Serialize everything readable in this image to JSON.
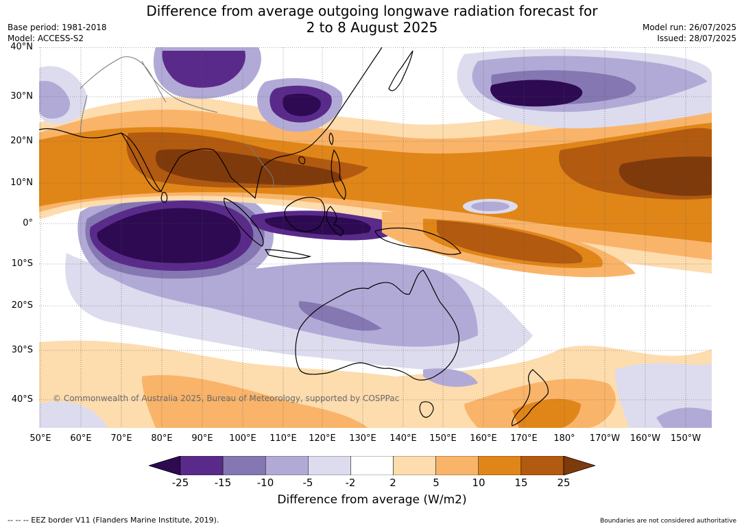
{
  "title_line1": "Difference from average outgoing longwave radiation forecast for",
  "title_line2": "2 to 8 August 2025",
  "base_period": "Base period: 1981-2018",
  "model": "Model: ACCESS-S2",
  "model_run": "Model run: 26/07/2025",
  "issued": "Issued: 28/07/2025",
  "lat_labels": [
    "40°N",
    "30°N",
    "20°N",
    "10°N",
    "0°",
    "10°S",
    "20°S",
    "30°S",
    "40°S"
  ],
  "lon_labels": [
    "50°E",
    "60°E",
    "70°E",
    "80°E",
    "90°E",
    "100°E",
    "110°E",
    "120°E",
    "130°E",
    "140°E",
    "150°E",
    "160°E",
    "170°E",
    "180°",
    "170°W",
    "160°W",
    "150°W"
  ],
  "copyright": "© Commonwealth of Australia 2025, Bureau of Meteorology, supported by COSPPac",
  "colorbar": {
    "ticks": [
      "-25",
      "-15",
      "-10",
      "-5",
      "-2",
      "2",
      "5",
      "10",
      "15",
      "25"
    ],
    "colors": [
      "#2d0a52",
      "#5a2a8a",
      "#8577b2",
      "#b2aad6",
      "#dcdcee",
      "#ffffff",
      "#fddcae",
      "#f9b46a",
      "#e08618",
      "#b25a10",
      "#7f3a0c"
    ],
    "title": "Difference from average (W/m2)"
  },
  "footer_left": "--  --  -- EEZ border V11 (Flanders Marine Institute, 2019).",
  "footer_right": "Boundaries are not considered authoritative"
}
